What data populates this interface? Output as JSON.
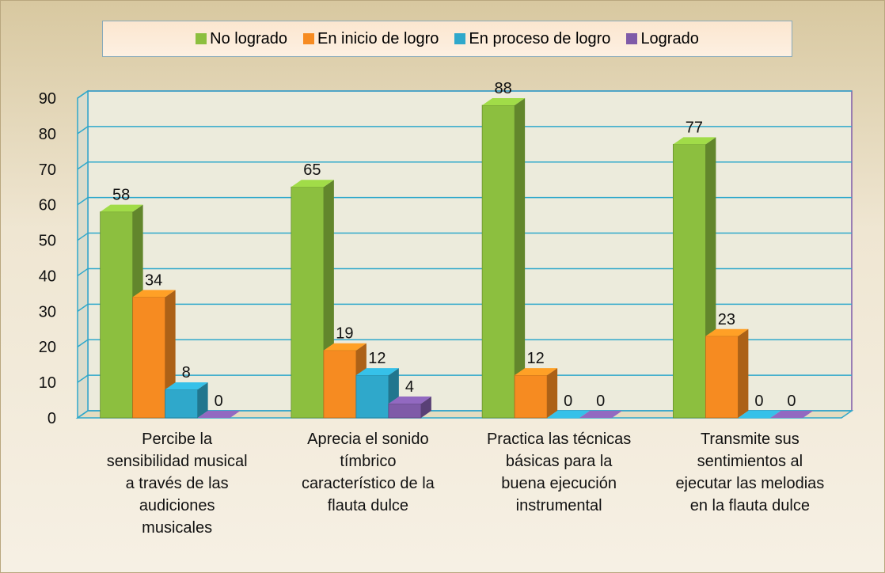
{
  "chart_data": {
    "type": "bar3d",
    "categories": [
      "Percibe la sensibilidad musical a través de las audiciones musicales",
      "Aprecia el sonido tímbrico característico de la flauta dulce",
      "Practica las técnicas básicas para la buena ejecución instrumental",
      "Transmite sus sentimientos al ejecutar las melodias en la flauta dulce"
    ],
    "series": [
      {
        "name": "No logrado",
        "color": "#8cbf3f",
        "values": [
          58,
          65,
          88,
          77
        ]
      },
      {
        "name": "En inicio de logro",
        "color": "#f68b21",
        "values": [
          34,
          19,
          12,
          23
        ]
      },
      {
        "name": "En proceso de logro",
        "color": "#2fa8cb",
        "values": [
          8,
          12,
          0,
          0
        ]
      },
      {
        "name": "Logrado",
        "color": "#7f5ba8",
        "values": [
          0,
          4,
          0,
          0
        ]
      }
    ],
    "ylim": [
      0,
      90
    ],
    "yticks": [
      0,
      10,
      20,
      30,
      40,
      50,
      60,
      70,
      80,
      90
    ],
    "grid": true,
    "legend": "top"
  }
}
